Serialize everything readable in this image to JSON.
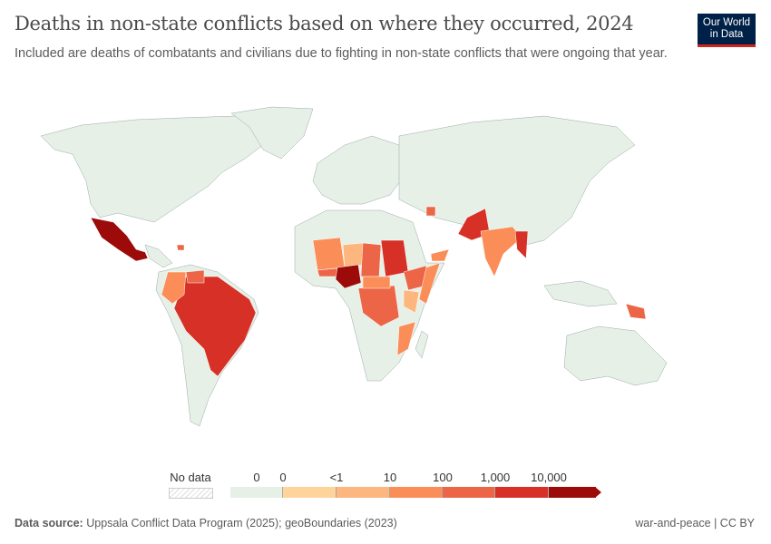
{
  "title": "Deaths in non-state conflicts based on where they occurred, 2024",
  "subtitle": "Included are deaths of combatants and civilians due to fighting in non-state conflicts that were ongoing that year.",
  "logo": {
    "line1": "Our World",
    "line2": "in Data"
  },
  "legend": {
    "no_data_label": "No data",
    "bins": [
      {
        "label": "0",
        "color": "#e6f0e6"
      },
      {
        "label": "0",
        "color": "#fed49b"
      },
      {
        "label": "<1",
        "color": "#fdb67d"
      },
      {
        "label": "10",
        "color": "#fb8d59"
      },
      {
        "label": "100",
        "color": "#ec6547"
      },
      {
        "label": "1,000",
        "color": "#d73027"
      },
      {
        "label": "10,000",
        "color": "#9c0a0a"
      }
    ]
  },
  "footer": {
    "source_label": "Data source:",
    "source": "Uppsala Conflict Data Program (2025); geoBoundaries (2023)",
    "right": "war-and-peace | CC BY"
  }
}
